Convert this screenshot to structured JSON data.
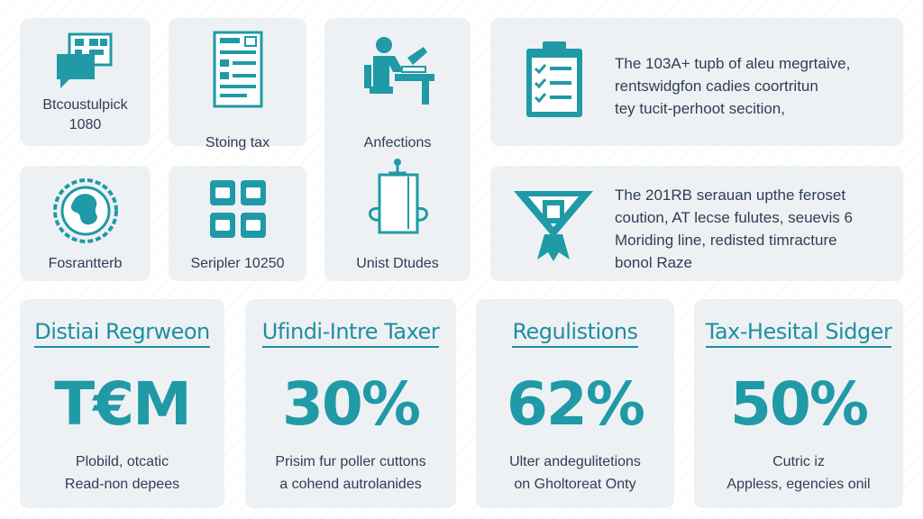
{
  "icon_cards": [
    {
      "label_lines": [
        "Btcoustulpick",
        "1080"
      ],
      "icon": "chat-document-icon"
    },
    {
      "label_lines": [
        "Stoing tax"
      ],
      "icon": "tax-form-icon"
    },
    {
      "label_lines": [
        "Anfections"
      ],
      "icon": "person-at-desk-icon"
    },
    {
      "label_lines": [
        "Fosrantterb"
      ],
      "icon": "globe-gear-icon"
    },
    {
      "label_lines": [
        "Seripler 10250"
      ],
      "icon": "grid-tiles-icon"
    },
    {
      "label_lines": [
        "Unist Dtudes"
      ],
      "icon": "shopping-bag-icon"
    }
  ],
  "info_cards": [
    {
      "icon": "clipboard-checklist-icon",
      "lines": [
        "The 103A+ tupb of aleu megrtaive,",
        "rentswidgfon cadies coortritun",
        "tey tucit-perhoot secition,"
      ]
    },
    {
      "icon": "ribbon-badge-icon",
      "lines": [
        "The 201RB serauan upthe feroset",
        "coution, AT lecse fulutes, seuevis 6",
        "Moriding line, redisted timracture",
        "bonol Raze"
      ]
    }
  ],
  "stats": [
    {
      "title": "Distiai Regrweon",
      "value": "T€M",
      "desc": [
        "Plobild, otcatic",
        "Read-non depees"
      ]
    },
    {
      "title": "Ufindi-Intre Taxer",
      "value": "30%",
      "desc": [
        "Prisim fur poller cuttons",
        "a cohend autrolanides"
      ]
    },
    {
      "title": "Regulistions",
      "value": "62%",
      "desc": [
        "Ulter andegulitetions",
        "on Gholtoreat Onty"
      ]
    },
    {
      "title": "Tax-Hesital Sidger",
      "value": "50%",
      "desc": [
        "Cutric iz",
        "Appless, egencies onil"
      ]
    }
  ],
  "colors": {
    "accent": "#1f9aa6",
    "text": "#2d3e55",
    "card": "#eef1f4"
  }
}
